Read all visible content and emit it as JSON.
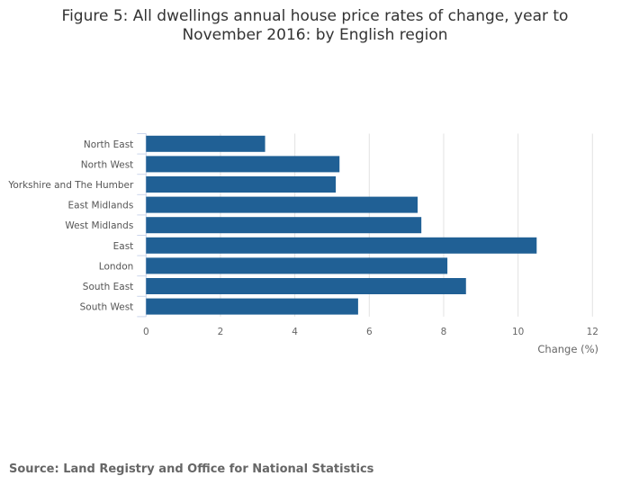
{
  "title_line1": "Figure 5: All dwellings annual house price rates of change, year to",
  "title_line2": "November 2016: by English region",
  "source": "Source: Land Registry and Office for National Statistics",
  "chart_data": {
    "type": "bar",
    "orientation": "horizontal",
    "title": "Figure 5: All dwellings annual house price rates of change, year to November 2016: by English region",
    "categories": [
      "North East",
      "North West",
      "Yorkshire and The Humber",
      "East Midlands",
      "West Midlands",
      "East",
      "London",
      "South East",
      "South West"
    ],
    "values": [
      3.2,
      5.2,
      5.1,
      7.3,
      7.4,
      10.5,
      8.1,
      8.6,
      5.7
    ],
    "xlabel": "Change (%)",
    "ylabel": "",
    "xlim": [
      0,
      12
    ],
    "xticks": [
      "0",
      "2",
      "4",
      "6",
      "8",
      "10",
      "12"
    ],
    "grid": true,
    "bar_color": "#206095"
  }
}
